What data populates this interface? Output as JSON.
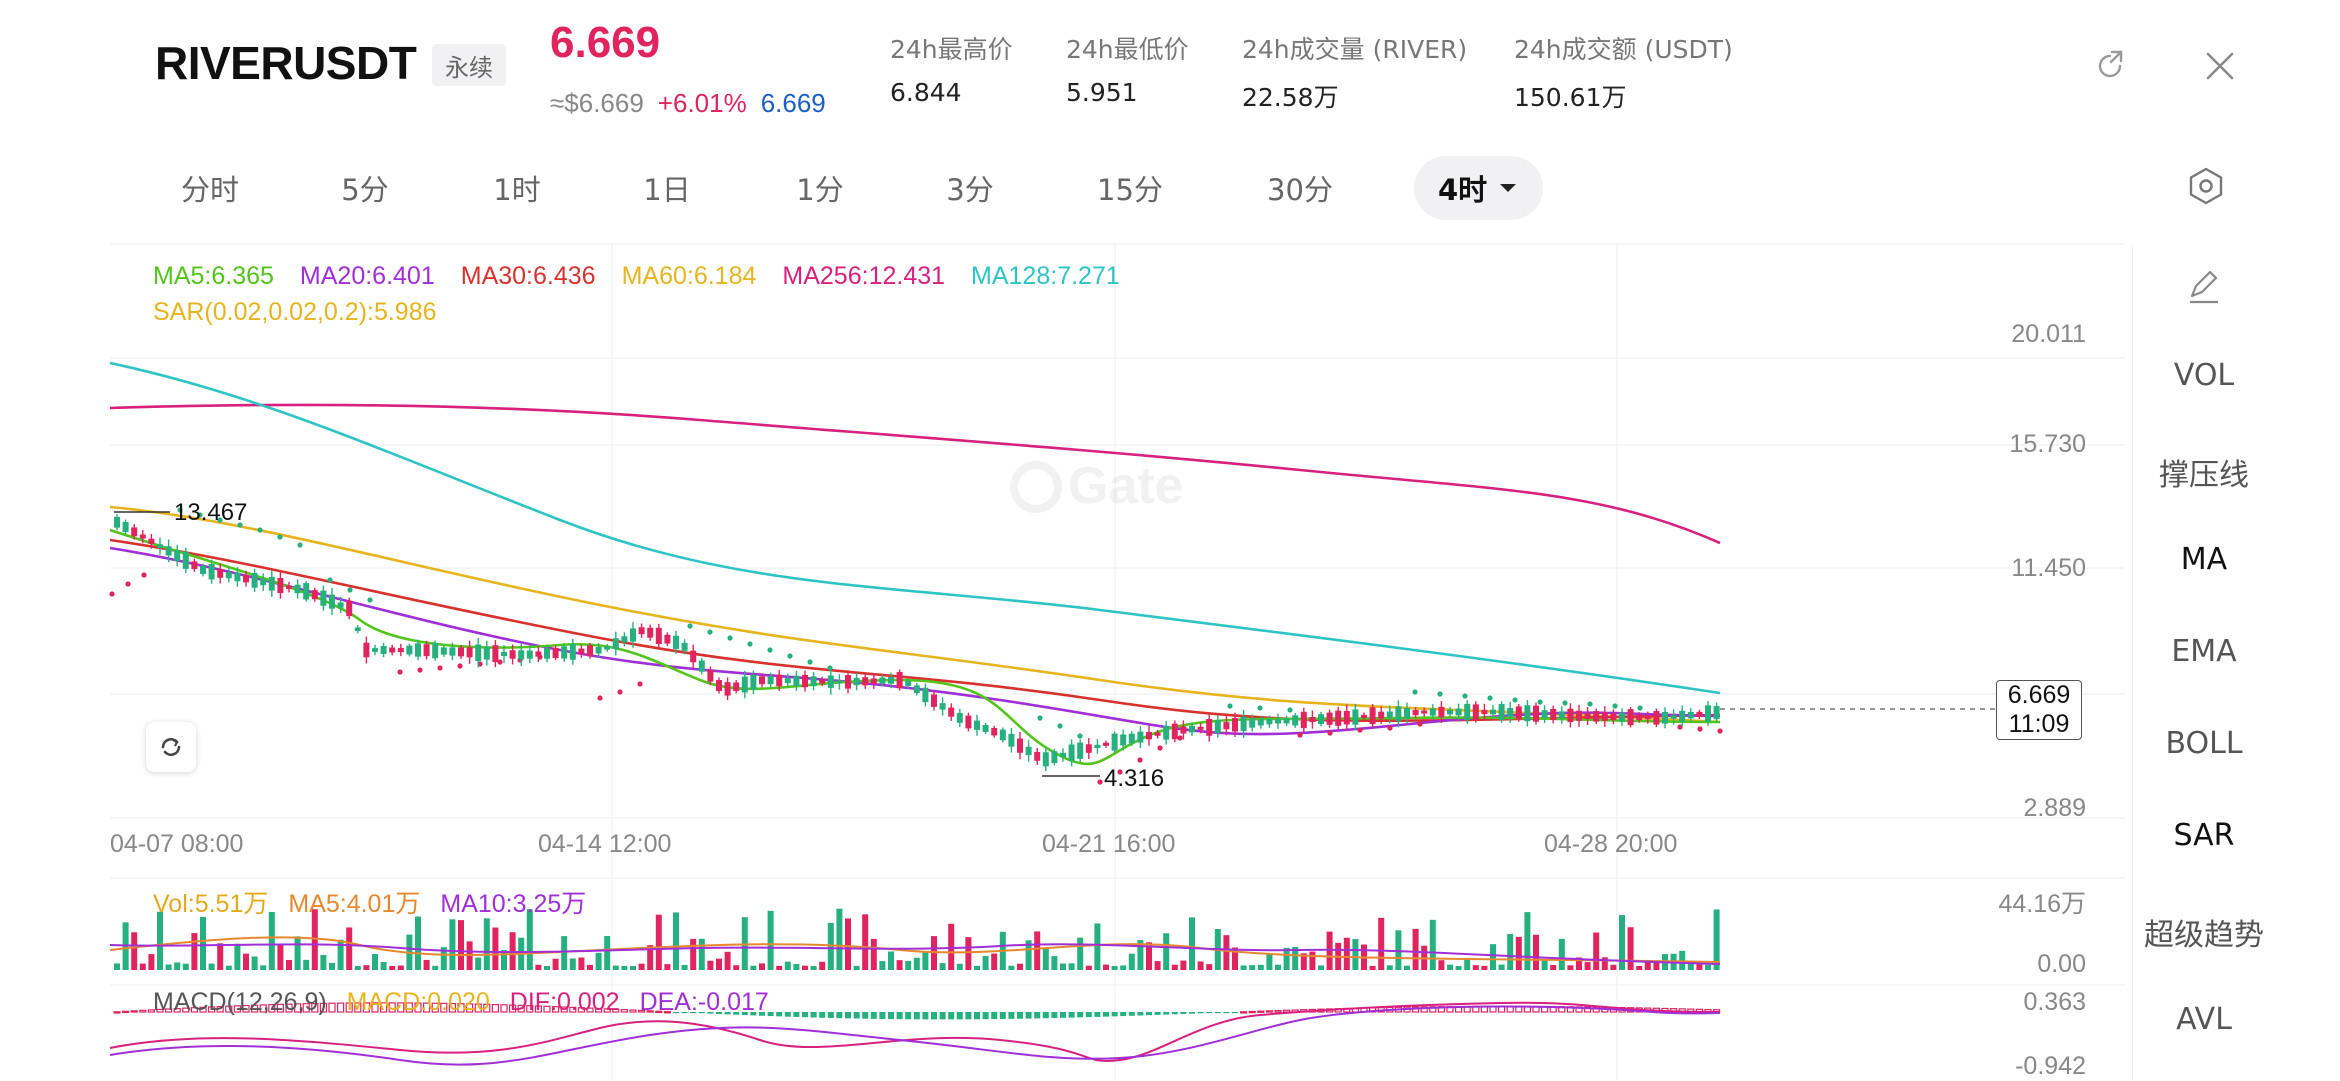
{
  "header": {
    "symbol": "RIVERUSDT",
    "contract_type": "永续",
    "last_price": "6.669",
    "usd_price": "≈$6.669",
    "change_pct": "+6.01%",
    "mark_price": "6.669",
    "stats": [
      {
        "label": "24h最高价",
        "value": "6.844"
      },
      {
        "label": "24h最低价",
        "value": "5.951"
      },
      {
        "label": "24h成交量 (RIVER)",
        "value": "22.58万"
      },
      {
        "label": "24h成交额 (USDT)",
        "value": "150.61万"
      }
    ],
    "icons": {
      "refresh": "external-refresh-icon",
      "close": "close-icon"
    }
  },
  "intervals": [
    "分时",
    "5分",
    "1时",
    "1日",
    "1分",
    "3分",
    "15分",
    "30分"
  ],
  "active_interval": "4时",
  "watermark": "Gate",
  "indicators": {
    "ma": [
      {
        "label": "MA5:6.365",
        "color": "#52c41a"
      },
      {
        "label": "MA20:6.401",
        "color": "#a12fd8"
      },
      {
        "label": "MA30:6.436",
        "color": "#d8322e"
      },
      {
        "label": "MA60:6.184",
        "color": "#e6b41e"
      },
      {
        "label": "MA256:12.431",
        "color": "#d8207e"
      },
      {
        "label": "MA128:7.271",
        "color": "#2ec4c4"
      }
    ],
    "sar": {
      "label": "SAR(0.02,0.02,0.2):5.986",
      "color": "#e6b41e"
    }
  },
  "price_axis": [
    "20.011",
    "15.730",
    "11.450",
    "2.889"
  ],
  "time_axis": [
    "04-07 08:00",
    "04-14 12:00",
    "04-21 16:00",
    "04-28 20:00"
  ],
  "annotations": {
    "high": "13.467",
    "low": "4.316"
  },
  "current_tag": {
    "price": "6.669",
    "countdown": "11:09"
  },
  "volume": {
    "legend": [
      {
        "label": "Vol:5.51万",
        "color": "#e6a91e"
      },
      {
        "label": "MA5:4.01万",
        "color": "#e6892e"
      },
      {
        "label": "MA10:3.25万",
        "color": "#a12fd8"
      }
    ],
    "axis": [
      "44.16万",
      "0.00"
    ]
  },
  "macd": {
    "legend": [
      {
        "label": "MACD(12,26,9)",
        "color": "#555555"
      },
      {
        "label": "MACD:0.020",
        "color": "#e6b41e"
      },
      {
        "label": "DIF:0.002",
        "color": "#d8207e"
      },
      {
        "label": "DEA:-0.017",
        "color": "#a12fd8"
      }
    ],
    "axis": [
      "0.363",
      "-0.942"
    ]
  },
  "right_panel": [
    "VOL",
    "撑压线",
    "MA",
    "EMA",
    "BOLL",
    "SAR",
    "超级趋势",
    "AVL"
  ],
  "right_panel_active": [
    "MA",
    "SAR"
  ],
  "colors": {
    "up": "#e0245e",
    "down": "#26b07f",
    "accent": "#e0245e"
  }
}
